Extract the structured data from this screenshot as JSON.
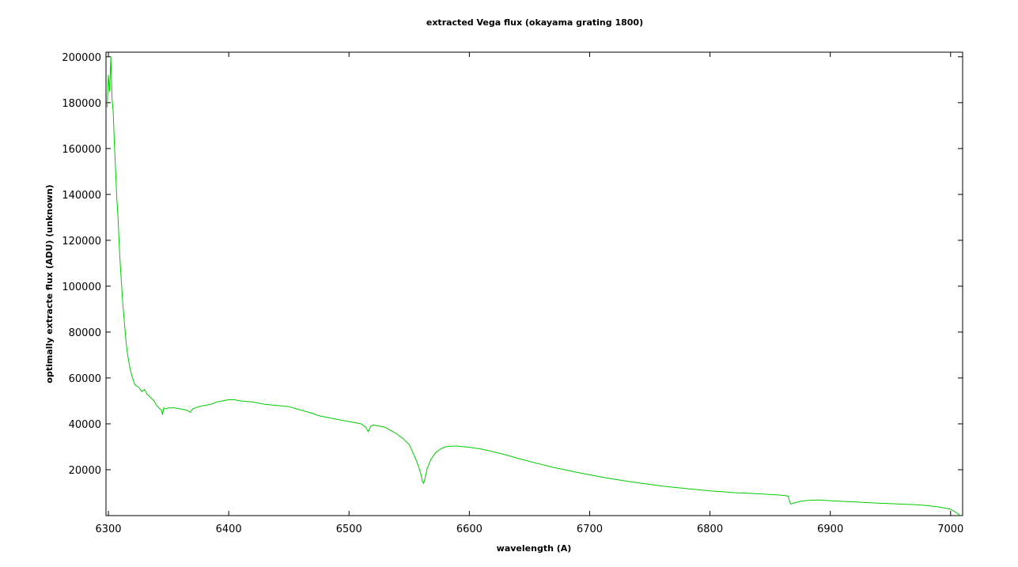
{
  "chart_data": {
    "type": "line",
    "title": "extracted Vega flux  (okayama grating 1800)",
    "xlabel": "wavelength (A)",
    "ylabel": "optimally extracte flux  (ADU) (unknown)",
    "xlim": [
      6298,
      7010
    ],
    "ylim": [
      0,
      202000
    ],
    "xticks": [
      6300,
      6400,
      6500,
      6600,
      6700,
      6800,
      6900,
      7000
    ],
    "yticks": [
      20000,
      40000,
      60000,
      80000,
      100000,
      120000,
      140000,
      160000,
      180000,
      200000
    ],
    "grid": false,
    "legend": "none",
    "series": [
      {
        "color": "#00cc00",
        "x": [
          6299,
          6300,
          6301,
          6302,
          6303,
          6304,
          6305,
          6306,
          6307,
          6308,
          6309,
          6310,
          6311,
          6312,
          6313,
          6314,
          6315,
          6316,
          6318,
          6320,
          6322,
          6325,
          6328,
          6330,
          6332,
          6334,
          6336,
          6338,
          6340,
          6342,
          6344,
          6345,
          6346,
          6348,
          6350,
          6355,
          6360,
          6365,
          6368,
          6370,
          6375,
          6380,
          6385,
          6390,
          6395,
          6400,
          6405,
          6410,
          6420,
          6430,
          6440,
          6450,
          6460,
          6470,
          6475,
          6480,
          6490,
          6500,
          6505,
          6510,
          6514,
          6516,
          6518,
          6520,
          6525,
          6530,
          6535,
          6540,
          6545,
          6550,
          6553,
          6556,
          6558,
          6560,
          6561,
          6562,
          6563,
          6565,
          6568,
          6572,
          6576,
          6580,
          6585,
          6590,
          6600,
          6610,
          6620,
          6630,
          6640,
          6650,
          6660,
          6670,
          6680,
          6690,
          6700,
          6710,
          6720,
          6730,
          6740,
          6750,
          6760,
          6770,
          6780,
          6790,
          6800,
          6810,
          6820,
          6830,
          6840,
          6850,
          6860,
          6865,
          6866,
          6867,
          6870,
          6875,
          6880,
          6890,
          6900,
          6910,
          6920,
          6930,
          6940,
          6950,
          6960,
          6970,
          6980,
          6990,
          7000,
          7005,
          7008
        ],
        "y": [
          178000,
          192000,
          185000,
          200000,
          182000,
          176000,
          162000,
          150000,
          138000,
          130000,
          118000,
          108000,
          100000,
          92000,
          86000,
          80000,
          74000,
          70000,
          64000,
          60000,
          57000,
          56000,
          54000,
          55000,
          53000,
          52000,
          51000,
          50000,
          48000,
          47000,
          46000,
          44000,
          47000,
          46500,
          47000,
          47000,
          46500,
          46000,
          45000,
          46500,
          47500,
          48000,
          48500,
          49500,
          50000,
          50500,
          50500,
          50000,
          49500,
          48500,
          48000,
          47500,
          46000,
          44500,
          43500,
          43000,
          42000,
          41000,
          40500,
          40000,
          38500,
          36500,
          39000,
          39500,
          39000,
          38500,
          37000,
          35500,
          33500,
          31000,
          27500,
          24000,
          21000,
          17500,
          15000,
          14000,
          16000,
          20500,
          24500,
          27500,
          29000,
          30000,
          30300,
          30300,
          29800,
          29000,
          27800,
          26500,
          25000,
          23600,
          22300,
          21000,
          19900,
          18800,
          17800,
          16800,
          15900,
          15100,
          14300,
          13600,
          12900,
          12300,
          11800,
          11300,
          10800,
          10400,
          10000,
          9800,
          9500,
          9200,
          8900,
          8500,
          6500,
          5000,
          5500,
          6200,
          6600,
          6800,
          6500,
          6200,
          6000,
          5700,
          5400,
          5200,
          5000,
          4800,
          4400,
          3800,
          2800,
          1200,
          0
        ]
      }
    ]
  }
}
